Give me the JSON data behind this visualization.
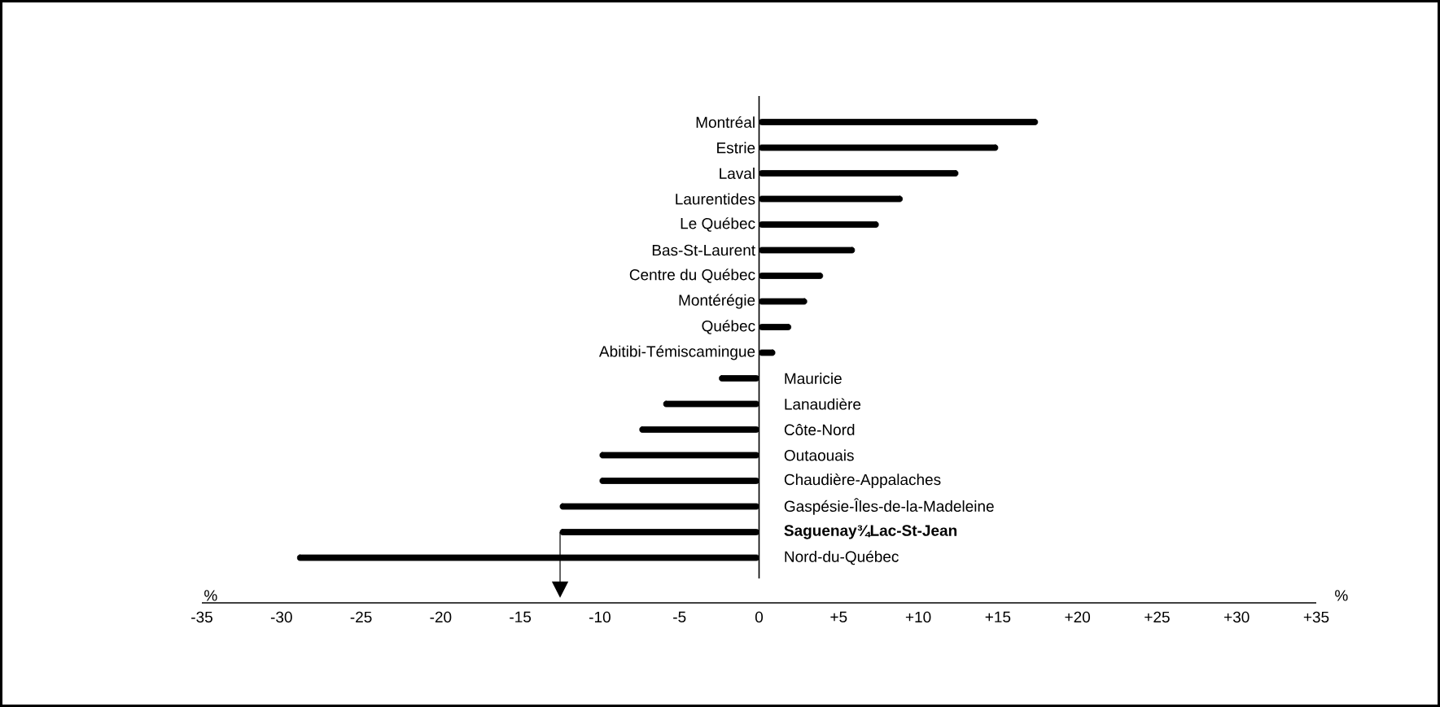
{
  "chart_data": {
    "type": "bar",
    "orientation": "horizontal",
    "xlabel": "%",
    "categories": [
      "Montréal",
      "Estrie",
      "Laval",
      "Laurentides",
      "Le Québec",
      "Bas-St-Laurent",
      "Centre du Québec",
      "Montérégie",
      "Québec",
      "Abitibi-Témiscamingue",
      "Mauricie",
      "Lanaudière",
      "Côte-Nord",
      "Outaouais",
      "Chaudière-Appalaches",
      "Gaspésie-Îles-de-la-Madeleine",
      "**Saguenay¾Lac-St-Jean**",
      "Nord-du-Québec"
    ],
    "values": [
      17.5,
      15,
      12.5,
      9,
      7.5,
      6,
      4,
      3,
      2,
      1,
      -2.5,
      -6,
      -7.5,
      -10,
      -10,
      -12.5,
      -12.5,
      -29
    ],
    "color": "#000000",
    "xlim": [
      -35,
      35
    ],
    "xticks": [
      -35,
      -30,
      -25,
      -20,
      -15,
      -10,
      -5,
      0,
      {
        "value": 5,
        "label": "+5"
      },
      {
        "value": 10,
        "label": "+10"
      },
      {
        "value": 15,
        "label": "+15"
      },
      {
        "value": 20,
        "label": "+20"
      },
      {
        "value": 25,
        "label": "+25"
      },
      {
        "value": 30,
        "label": "+30"
      },
      {
        "value": 35,
        "label": "+35"
      }
    ]
  }
}
